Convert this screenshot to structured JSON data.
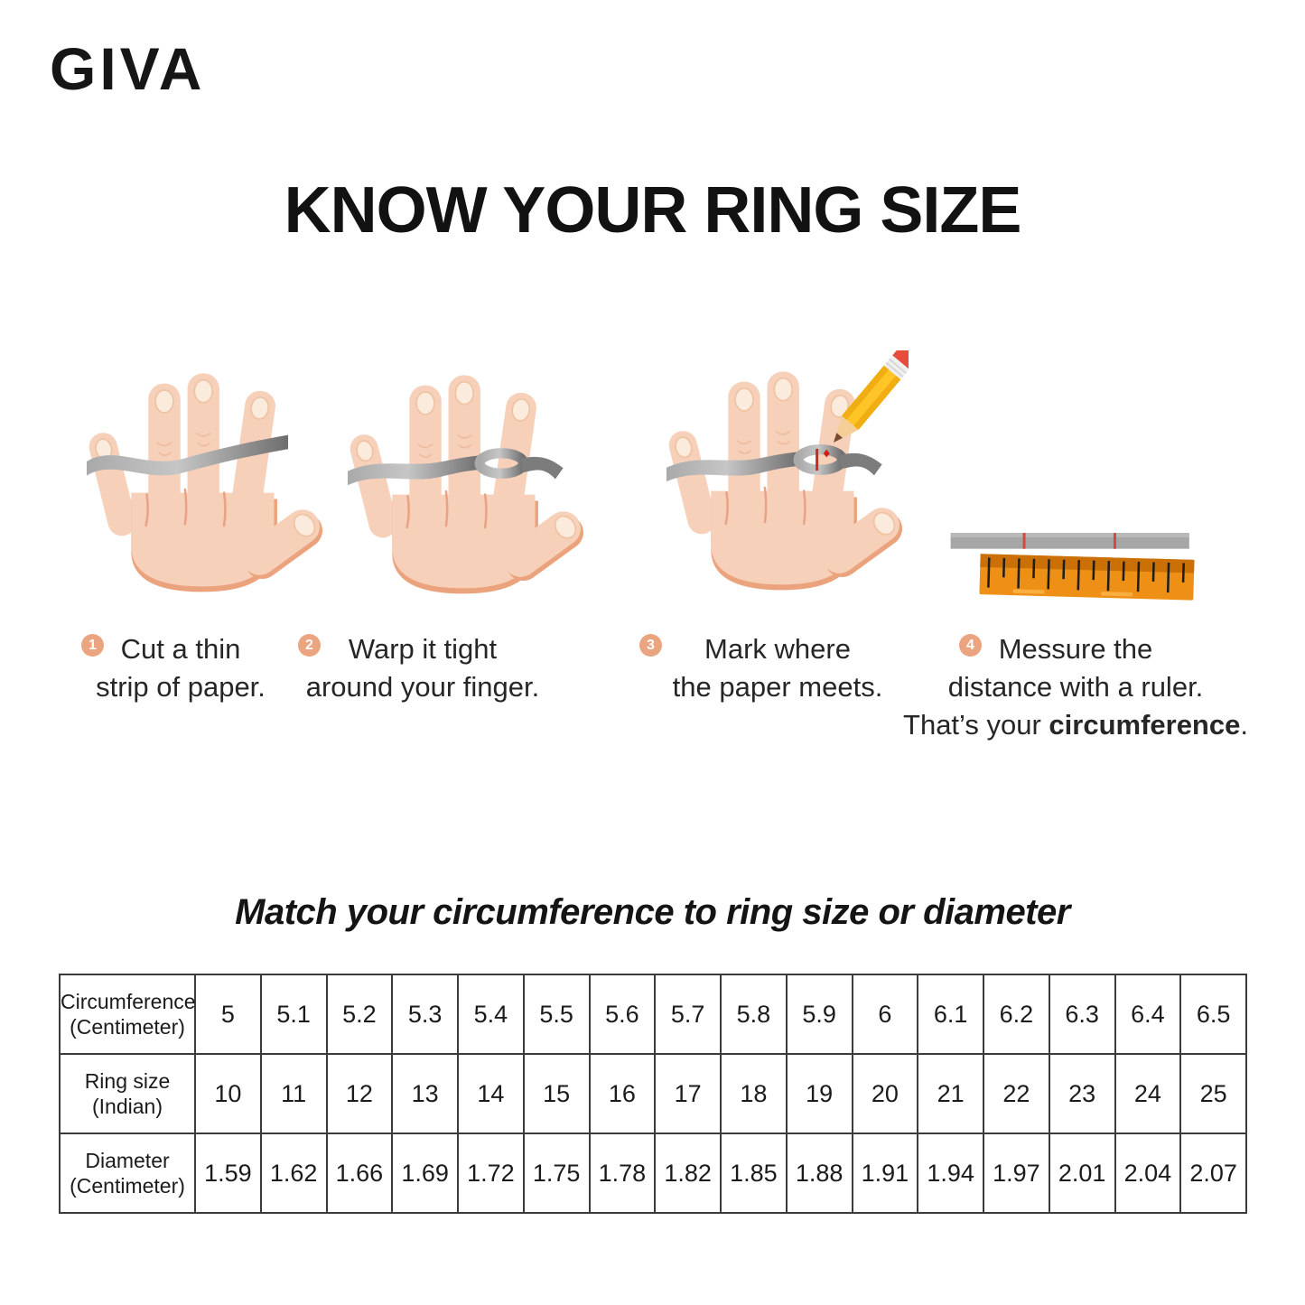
{
  "brand": "GIVA",
  "title": "KNOW YOUR RING SIZE",
  "steps": [
    {
      "number": "1",
      "lines": [
        "Cut a thin",
        "strip of paper."
      ]
    },
    {
      "number": "2",
      "lines": [
        "Warp it tight",
        "around your finger."
      ]
    },
    {
      "number": "3",
      "lines": [
        "Mark where",
        "the paper meets."
      ]
    },
    {
      "number": "4",
      "lines": [
        "Messure the",
        "distance with a ruler."
      ],
      "extra": {
        "prefix": "That’s your ",
        "bold": "circumference",
        "suffix": "."
      }
    }
  ],
  "table_title": "Match your circumference to ring size or diameter",
  "chart_data": {
    "type": "table",
    "title": "Match your circumference to ring size or diameter",
    "rows": [
      {
        "header_lines": [
          "Circumference",
          "(Centimeter)"
        ],
        "values": [
          "5",
          "5.1",
          "5.2",
          "5.3",
          "5.4",
          "5.5",
          "5.6",
          "5.7",
          "5.8",
          "5.9",
          "6",
          "6.1",
          "6.2",
          "6.3",
          "6.4",
          "6.5"
        ]
      },
      {
        "header_lines": [
          "Ring size",
          "(Indian)"
        ],
        "values": [
          "10",
          "11",
          "12",
          "13",
          "14",
          "15",
          "16",
          "17",
          "18",
          "19",
          "20",
          "21",
          "22",
          "23",
          "24",
          "25"
        ]
      },
      {
        "header_lines": [
          "Diameter",
          "(Centimeter)"
        ],
        "values": [
          "1.59",
          "1.62",
          "1.66",
          "1.69",
          "1.72",
          "1.75",
          "1.78",
          "1.82",
          "1.85",
          "1.88",
          "1.91",
          "1.94",
          "1.97",
          "2.01",
          "2.04",
          "2.07"
        ]
      }
    ]
  },
  "icons": [
    "hand-paper-strip-icon",
    "hand-wrap-finger-icon",
    "hand-pencil-mark-icon",
    "paper-strip-ruler-icon"
  ],
  "colors": {
    "badge": "#EBA480",
    "skin": "#F7D0BA",
    "skin_shadow": "#EAA37C",
    "strip_gray": "#9E9E9E",
    "ruler_orange": "#EE9015",
    "ruler_orange_dark": "#CA7007",
    "mark_red": "#D6463C",
    "text": "#1d1d1d"
  }
}
